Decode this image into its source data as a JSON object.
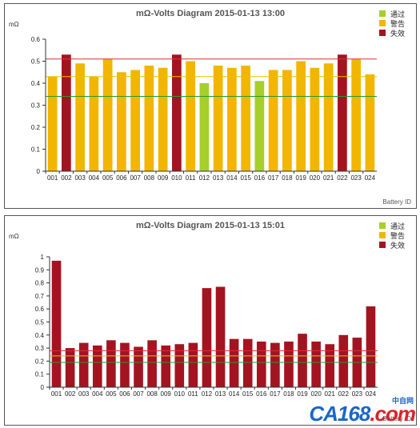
{
  "chart_data": [
    {
      "type": "bar",
      "title": "mΩ-Volts Diagram 2015-01-13 13:00",
      "ylabel": "mΩ",
      "xlabel": "Battery ID",
      "ylim": [
        0,
        0.6
      ],
      "yticks": [
        "0",
        "0.1",
        "0.2",
        "0.3",
        "0.4",
        "0.5",
        "0.6"
      ],
      "ytick_values": [
        0,
        0.1,
        0.2,
        0.3,
        0.4,
        0.5,
        0.6
      ],
      "categories": [
        "001",
        "002",
        "003",
        "004",
        "005",
        "006",
        "007",
        "008",
        "009",
        "010",
        "011",
        "012",
        "013",
        "014",
        "015",
        "016",
        "017",
        "018",
        "019",
        "020",
        "021",
        "022",
        "023",
        "024"
      ],
      "values": [
        0.43,
        0.53,
        0.49,
        0.43,
        0.51,
        0.45,
        0.46,
        0.48,
        0.47,
        0.53,
        0.5,
        0.4,
        0.48,
        0.47,
        0.48,
        0.41,
        0.46,
        0.46,
        0.5,
        0.47,
        0.49,
        0.53,
        0.51,
        0.44
      ],
      "statuses": [
        "w",
        "f",
        "w",
        "w",
        "w",
        "w",
        "w",
        "w",
        "w",
        "f",
        "w",
        "p",
        "w",
        "w",
        "w",
        "p",
        "w",
        "w",
        "w",
        "w",
        "w",
        "f",
        "w",
        "w"
      ],
      "reference_lines": [
        {
          "value": 0.51,
          "color": "#e03030"
        },
        {
          "value": 0.43,
          "color": "#e8c000"
        },
        {
          "value": 0.34,
          "color": "#2a9a2a"
        }
      ],
      "legend": [
        {
          "key": "p",
          "label": "通过",
          "color": "#a6cf2a"
        },
        {
          "key": "w",
          "label": "警告",
          "color": "#f2b600"
        },
        {
          "key": "f",
          "label": "失效",
          "color": "#a31421"
        }
      ],
      "legend_position": "top-right",
      "grid": false
    },
    {
      "type": "bar",
      "title": "mΩ-Volts Diagram 2015-01-13 15:01",
      "ylabel": "mΩ",
      "xlabel": "Battery ID",
      "ylim": [
        0,
        1
      ],
      "yticks": [
        "0",
        "0.1",
        "0.2",
        "0.3",
        "0.4",
        "0.5",
        "0.6",
        "0.7",
        "0.8",
        "0.9",
        "1"
      ],
      "ytick_values": [
        0,
        0.1,
        0.2,
        0.3,
        0.4,
        0.5,
        0.6,
        0.7,
        0.8,
        0.9,
        1
      ],
      "categories": [
        "001",
        "002",
        "003",
        "004",
        "005",
        "006",
        "007",
        "008",
        "009",
        "010",
        "011",
        "012",
        "013",
        "014",
        "015",
        "016",
        "017",
        "018",
        "019",
        "020",
        "021",
        "022",
        "023",
        "024"
      ],
      "values": [
        0.97,
        0.3,
        0.34,
        0.32,
        0.36,
        0.34,
        0.31,
        0.36,
        0.32,
        0.33,
        0.34,
        0.76,
        0.77,
        0.37,
        0.37,
        0.35,
        0.34,
        0.35,
        0.41,
        0.35,
        0.33,
        0.4,
        0.38,
        0.62
      ],
      "statuses": [
        "f",
        "f",
        "f",
        "f",
        "f",
        "f",
        "f",
        "f",
        "f",
        "f",
        "f",
        "f",
        "f",
        "f",
        "f",
        "f",
        "f",
        "f",
        "f",
        "f",
        "f",
        "f",
        "f",
        "f"
      ],
      "reference_lines": [
        {
          "value": 0.28,
          "color": "#e03030"
        },
        {
          "value": 0.24,
          "color": "#e8c000"
        },
        {
          "value": 0.19,
          "color": "#2a9a2a"
        }
      ],
      "legend": [
        {
          "key": "p",
          "label": "通过",
          "color": "#a6cf2a"
        },
        {
          "key": "w",
          "label": "警告",
          "color": "#f2b600"
        },
        {
          "key": "f",
          "label": "失效",
          "color": "#a31421"
        }
      ],
      "legend_position": "top-right",
      "grid": false
    }
  ],
  "watermark": {
    "logo": "CA168",
    "suffix": ".com",
    "sub": "中自网"
  }
}
